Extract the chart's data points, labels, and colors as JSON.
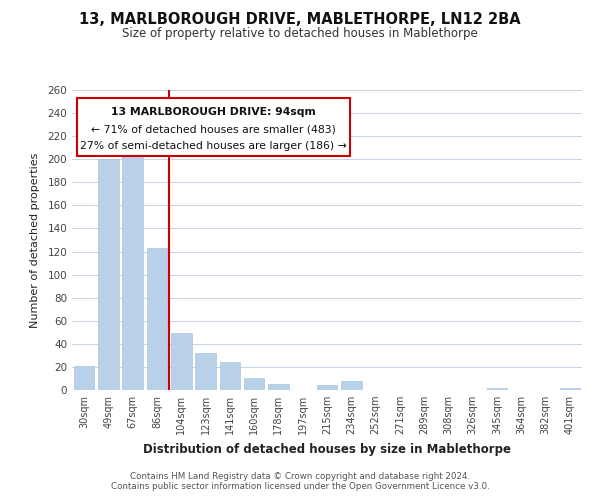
{
  "title": "13, MARLBOROUGH DRIVE, MABLETHORPE, LN12 2BA",
  "subtitle": "Size of property relative to detached houses in Mablethorpe",
  "xlabel": "Distribution of detached houses by size in Mablethorpe",
  "ylabel": "Number of detached properties",
  "bar_color": "#b8d0e8",
  "categories": [
    "30sqm",
    "49sqm",
    "67sqm",
    "86sqm",
    "104sqm",
    "123sqm",
    "141sqm",
    "160sqm",
    "178sqm",
    "197sqm",
    "215sqm",
    "234sqm",
    "252sqm",
    "271sqm",
    "289sqm",
    "308sqm",
    "326sqm",
    "345sqm",
    "364sqm",
    "382sqm",
    "401sqm"
  ],
  "values": [
    21,
    200,
    213,
    123,
    49,
    32,
    24,
    10,
    5,
    0,
    4,
    8,
    0,
    0,
    0,
    0,
    0,
    2,
    0,
    0,
    2
  ],
  "ylim": [
    0,
    260
  ],
  "yticks": [
    0,
    20,
    40,
    60,
    80,
    100,
    120,
    140,
    160,
    180,
    200,
    220,
    240,
    260
  ],
  "annotation_title": "13 MARLBOROUGH DRIVE: 94sqm",
  "annotation_line1": "← 71% of detached houses are smaller (483)",
  "annotation_line2": "27% of semi-detached houses are larger (186) →",
  "footer1": "Contains HM Land Registry data © Crown copyright and database right 2024.",
  "footer2": "Contains public sector information licensed under the Open Government Licence v3.0.",
  "background_color": "#ffffff",
  "grid_color": "#c8d4e4",
  "red_line_color": "#cc0000",
  "ann_box_color": "#cc0000"
}
